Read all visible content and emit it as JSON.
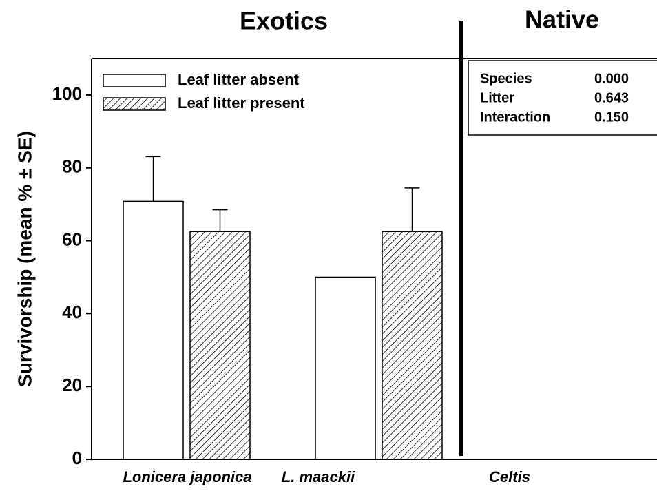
{
  "chart_data": {
    "type": "bar",
    "group_labels": [
      "Exotics",
      "Native"
    ],
    "ylabel": "Survivorship (mean % ± SE)",
    "categories": [
      "Lonicera japonica",
      "L. maackii",
      "Celtis"
    ],
    "series": [
      {
        "name": "Leaf litter absent",
        "color": "#ffffff",
        "hatch": false,
        "values": [
          70.8,
          50,
          null
        ],
        "errors": [
          12.3,
          null,
          null
        ]
      },
      {
        "name": "Leaf litter present",
        "color": "#ffffff",
        "hatch": true,
        "values": [
          62.5,
          62.5,
          null
        ],
        "errors": [
          6,
          12,
          null
        ]
      }
    ],
    "ylim": [
      0,
      110
    ],
    "yticks": [
      0,
      20,
      40,
      60,
      80,
      100
    ],
    "legend": "upper left",
    "stats": [
      [
        "Species",
        "0.000"
      ],
      [
        "Litter",
        "0.643"
      ],
      [
        "Interaction",
        "0.150"
      ]
    ]
  }
}
